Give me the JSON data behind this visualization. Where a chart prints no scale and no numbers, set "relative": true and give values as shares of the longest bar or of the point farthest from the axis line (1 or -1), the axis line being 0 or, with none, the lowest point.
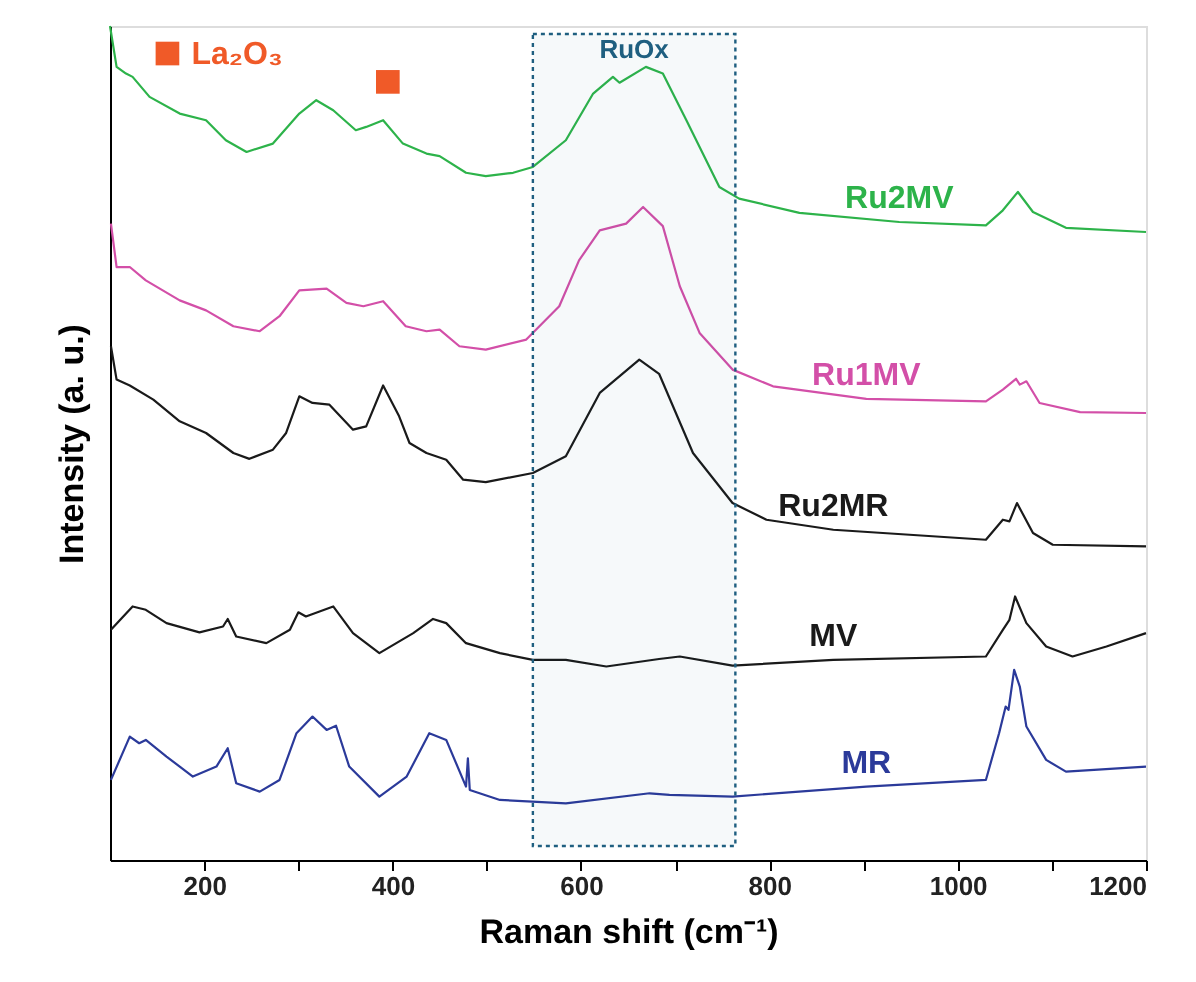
{
  "chart_data": {
    "type": "line",
    "relative": true,
    "xlabel": "Raman shift (cm⁻¹)",
    "ylabel": "Intensity (a. u.)",
    "xlim": [
      100,
      1200
    ],
    "xticks": [
      200,
      {
        "value": 300,
        "label": null
      },
      400,
      {
        "value": 500,
        "label": null
      },
      600,
      {
        "value": 700,
        "label": null
      },
      800,
      {
        "value": 900,
        "label": null
      },
      1000,
      {
        "value": 1100,
        "label": null
      },
      1200
    ],
    "tick_labels": "x",
    "grid": false,
    "legend": false,
    "marker": "none",
    "line_style": "solid",
    "bands": [
      {
        "axis": "x",
        "from": 549,
        "to": 764,
        "label": "RuOx",
        "color": "#1f5f80"
      }
    ],
    "series": [
      {
        "name": "Ru2MV",
        "color": "#2db34a",
        "x": [
          100,
          107,
          117,
          124,
          142,
          174,
          202,
          223,
          245,
          273,
          301,
          319,
          337,
          361,
          372,
          390,
          411,
          436,
          450,
          478,
          499,
          528,
          549,
          584,
          613,
          634,
          641,
          669,
          687,
          712,
          747,
          768,
          832,
          938,
          1030,
          1048,
          1064,
          1080,
          1115,
          1200
        ],
        "values": [
          1.0,
          0.951,
          0.943,
          0.939,
          0.915,
          0.895,
          0.887,
          0.863,
          0.849,
          0.859,
          0.895,
          0.911,
          0.899,
          0.875,
          0.879,
          0.887,
          0.859,
          0.847,
          0.844,
          0.824,
          0.82,
          0.824,
          0.831,
          0.863,
          0.919,
          0.939,
          0.932,
          0.951,
          0.943,
          0.887,
          0.807,
          0.793,
          0.776,
          0.765,
          0.761,
          0.779,
          0.801,
          0.777,
          0.758,
          0.753
        ]
      },
      {
        "name": "Ru1MV",
        "color": "#d34fa8",
        "x": [
          101,
          107,
          121,
          138,
          174,
          202,
          231,
          259,
          280,
          301,
          330,
          351,
          369,
          390,
          414,
          436,
          450,
          471,
          499,
          542,
          577,
          598,
          620,
          648,
          666,
          687,
          705,
          726,
          761,
          804,
          903,
          1030,
          1048,
          1062,
          1066,
          1073,
          1087,
          1130,
          1200
        ],
        "values": [
          0.763,
          0.711,
          0.711,
          0.695,
          0.671,
          0.659,
          0.64,
          0.634,
          0.652,
          0.683,
          0.685,
          0.668,
          0.664,
          0.67,
          0.64,
          0.634,
          0.636,
          0.616,
          0.612,
          0.624,
          0.664,
          0.719,
          0.755,
          0.763,
          0.783,
          0.76,
          0.688,
          0.632,
          0.588,
          0.568,
          0.553,
          0.55,
          0.564,
          0.577,
          0.57,
          0.574,
          0.548,
          0.537,
          0.536
        ]
      },
      {
        "name": "Ru2MR",
        "color": "#1a1a1a",
        "x": [
          101,
          107,
          121,
          146,
          174,
          202,
          231,
          248,
          273,
          287,
          301,
          315,
          333,
          358,
          372,
          390,
          407,
          418,
          436,
          457,
          475,
          499,
          549,
          584,
          620,
          662,
          683,
          719,
          761,
          797,
          868,
          1030,
          1048,
          1055,
          1063,
          1080,
          1101,
          1200
        ],
        "values": [
          0.616,
          0.576,
          0.569,
          0.552,
          0.526,
          0.512,
          0.488,
          0.481,
          0.492,
          0.512,
          0.556,
          0.548,
          0.546,
          0.516,
          0.52,
          0.569,
          0.532,
          0.5,
          0.488,
          0.48,
          0.456,
          0.453,
          0.464,
          0.484,
          0.56,
          0.6,
          0.583,
          0.488,
          0.428,
          0.408,
          0.396,
          0.384,
          0.408,
          0.406,
          0.428,
          0.392,
          0.378,
          0.376
        ]
      },
      {
        "name": "MV",
        "color": "#1a1a1a",
        "x": [
          101,
          124,
          138,
          160,
          195,
          220,
          225,
          234,
          266,
          291,
          300,
          308,
          337,
          358,
          386,
          422,
          443,
          457,
          478,
          514,
          549,
          584,
          627,
          683,
          705,
          761,
          868,
          1030,
          1048,
          1055,
          1061,
          1073,
          1094,
          1122,
          1158,
          1200
        ],
        "values": [
          0.276,
          0.304,
          0.3,
          0.284,
          0.273,
          0.28,
          0.289,
          0.268,
          0.26,
          0.276,
          0.297,
          0.292,
          0.304,
          0.272,
          0.248,
          0.272,
          0.289,
          0.284,
          0.26,
          0.248,
          0.24,
          0.24,
          0.232,
          0.241,
          0.244,
          0.233,
          0.24,
          0.244,
          0.276,
          0.288,
          0.316,
          0.284,
          0.256,
          0.244,
          0.256,
          0.272
        ]
      },
      {
        "name": "MR",
        "color": "#2b3a9a",
        "x": [
          101,
          121,
          131,
          138,
          160,
          188,
          213,
          225,
          234,
          259,
          280,
          298,
          315,
          330,
          340,
          354,
          386,
          415,
          439,
          457,
          478,
          480,
          482,
          514,
          584,
          673,
          694,
          761,
          903,
          1030,
          1044,
          1051,
          1054,
          1060,
          1066,
          1073,
          1094,
          1115,
          1200
        ],
        "values": [
          0.096,
          0.148,
          0.14,
          0.144,
          0.124,
          0.1,
          0.112,
          0.134,
          0.092,
          0.082,
          0.096,
          0.152,
          0.172,
          0.156,
          0.161,
          0.112,
          0.076,
          0.1,
          0.152,
          0.144,
          0.088,
          0.122,
          0.084,
          0.072,
          0.068,
          0.08,
          0.078,
          0.076,
          0.088,
          0.096,
          0.152,
          0.184,
          0.18,
          0.228,
          0.208,
          0.16,
          0.12,
          0.106,
          0.112
        ]
      },
      {
        "name": "La₂O₃",
        "type": "scatter",
        "marker": "square",
        "color": "#f05a28",
        "x": [
          161,
          395
        ],
        "values": [
          0.967,
          0.933
        ]
      }
    ]
  }
}
